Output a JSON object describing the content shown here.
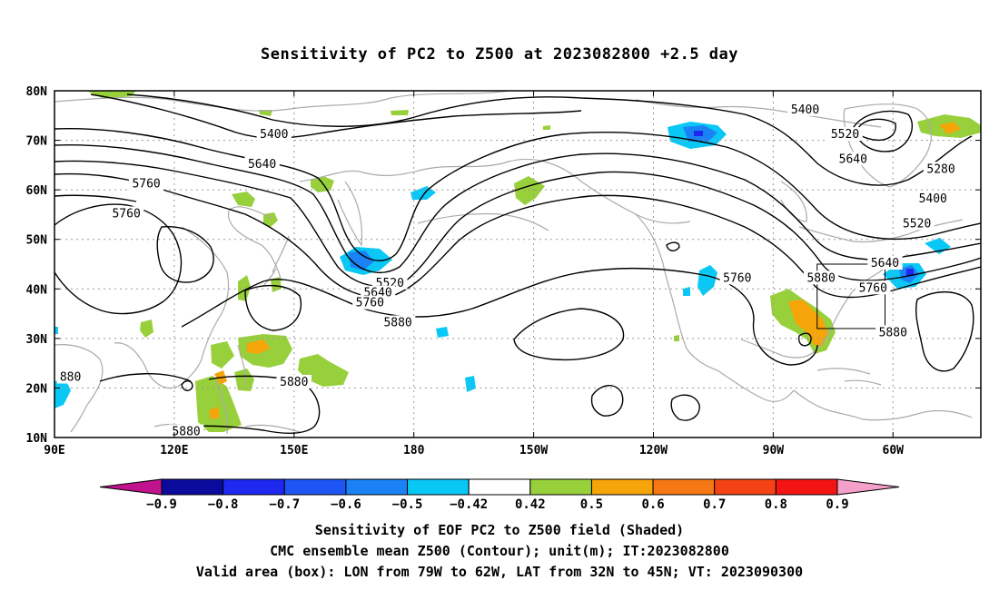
{
  "title": "Sensitivity of PC2 to Z500 at 2023082800 +2.5 day",
  "map": {
    "lon_labels": [
      "90E",
      "120E",
      "150E",
      "180",
      "150W",
      "120W",
      "90W",
      "60W"
    ],
    "lat_labels": [
      "80N",
      "70N",
      "60N",
      "50N",
      "40N",
      "30N",
      "20N",
      "10N"
    ],
    "lon_range_deg_east": [
      90,
      322
    ],
    "lat_range": [
      10,
      80
    ],
    "gridlines": "dotted",
    "valid_box": {
      "lon_from": -79,
      "lon_to": -62,
      "lat_from": 32,
      "lat_to": 45
    },
    "contour_labels": [
      {
        "text": "5400",
        "lon": 278,
        "lat": 76
      },
      {
        "text": "5400",
        "lon": 145,
        "lat": 71
      },
      {
        "text": "5520",
        "lon": 288,
        "lat": 71
      },
      {
        "text": "5640",
        "lon": 142,
        "lat": 65
      },
      {
        "text": "5640",
        "lon": 290,
        "lat": 66
      },
      {
        "text": "5760",
        "lon": 113,
        "lat": 61
      },
      {
        "text": "5760",
        "lon": 108,
        "lat": 55
      },
      {
        "text": "5280",
        "lon": 312,
        "lat": 64
      },
      {
        "text": "5400",
        "lon": 310,
        "lat": 58
      },
      {
        "text": "5520",
        "lon": 306,
        "lat": 53
      },
      {
        "text": "5640",
        "lon": 298,
        "lat": 45
      },
      {
        "text": "5520",
        "lon": 174,
        "lat": 41
      },
      {
        "text": "5640",
        "lon": 171,
        "lat": 39
      },
      {
        "text": "5760",
        "lon": 169,
        "lat": 37
      },
      {
        "text": "5880",
        "lon": 176,
        "lat": 33
      },
      {
        "text": "5760",
        "lon": 261,
        "lat": 42
      },
      {
        "text": "5880",
        "lon": 282,
        "lat": 42
      },
      {
        "text": "5760",
        "lon": 295,
        "lat": 40
      },
      {
        "text": "5880",
        "lon": 300,
        "lat": 31
      },
      {
        "text": "5880",
        "lon": 150,
        "lat": 21
      },
      {
        "text": "5880",
        "lon": 123,
        "lat": 11
      },
      {
        "text": "880",
        "lon": 94,
        "lat": 22
      }
    ]
  },
  "colorbar": {
    "labels": [
      "-0.9",
      "-0.8",
      "-0.7",
      "-0.6",
      "-0.5",
      "-0.42",
      "0.42",
      "0.5",
      "0.6",
      "0.7",
      "0.8",
      "0.9"
    ],
    "colors": [
      "#c0138d",
      "#0a0a9c",
      "#1e28ee",
      "#1e56f5",
      "#1a82f5",
      "#0ac8f5",
      "#ffffff",
      "#98d03c",
      "#f5a40a",
      "#f57814",
      "#f54214",
      "#f51414",
      "#f5a0c8"
    ]
  },
  "captions": {
    "line1": "Sensitivity of EOF PC2 to Z500 field (Shaded)",
    "line2": "CMC ensemble mean Z500 (Contour); unit(m); IT:2023082800",
    "line3": "Valid area (box): LON from 79W to 62W, LAT from 32N to 45N; VT: 2023090300"
  },
  "colors": {
    "contour": "#000000",
    "coastline": "#aaaaaa",
    "positive_low": "#98d03c",
    "positive_mid": "#f5a40a",
    "negative_low": "#0ac8f5",
    "negative_mid": "#1a82f5"
  }
}
